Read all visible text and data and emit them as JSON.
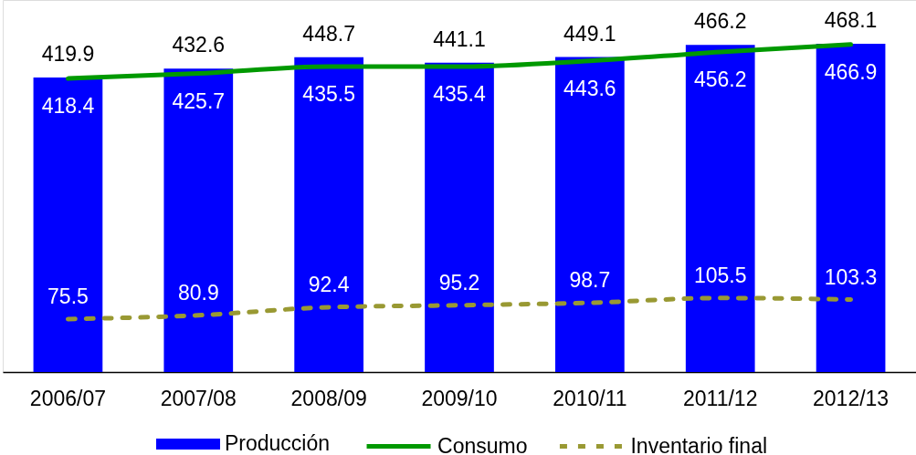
{
  "chart_data": {
    "type": "bar",
    "categories": [
      "2006/07",
      "2007/08",
      "2008/09",
      "2009/10",
      "2010/11",
      "2011/12",
      "2012/13"
    ],
    "series": [
      {
        "name": "Producción",
        "color": "#0000ff",
        "values": [
          419.9,
          432.6,
          448.7,
          441.1,
          449.1,
          466.2,
          468.1
        ]
      },
      {
        "name": "Consumo",
        "type": "line",
        "color": "#009900",
        "line_style": "solid",
        "values": [
          418.4,
          425.7,
          435.5,
          435.4,
          443.6,
          456.2,
          466.9
        ]
      },
      {
        "name": "Inventario final",
        "type": "line",
        "color": "#999933",
        "line_style": "dashed",
        "values": [
          75.5,
          80.9,
          92.4,
          95.2,
          98.7,
          105.5,
          103.3
        ]
      }
    ],
    "data_labels": true,
    "legend": "bottom",
    "grid": false,
    "marker": "none"
  }
}
